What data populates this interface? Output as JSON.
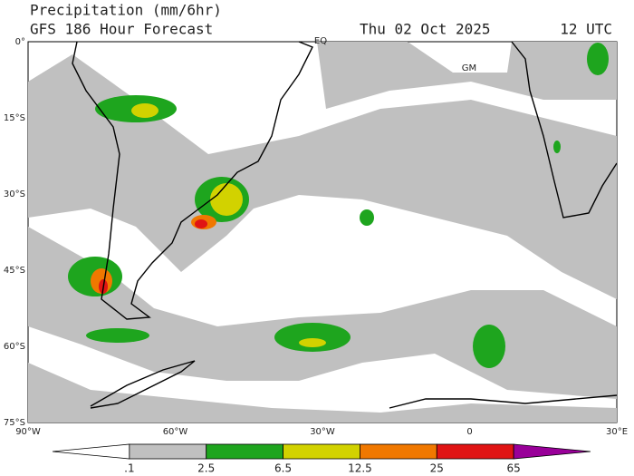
{
  "header": {
    "title": "Precipitation (mm/6hr)",
    "model": "GFS 186 Hour Forecast",
    "date": "Thu 02 Oct 2025",
    "time": "12 UTC"
  },
  "map": {
    "lat_labels": [
      "0°",
      "15°S",
      "30°S",
      "45°S",
      "60°S",
      "75°S"
    ],
    "lon_labels": [
      "90°W",
      "60°W",
      "30°W",
      "0",
      "30°E"
    ],
    "annotations": [
      "EQ",
      "GM"
    ]
  },
  "colorbar": {
    "levels": [
      {
        "value": 0.1,
        "label": ".1"
      },
      2.5,
      6.5,
      12.5,
      25,
      65
    ],
    "colors": [
      "#ffffff",
      "#c0c0c0",
      "#1ea51e",
      "#d2d200",
      "#f07800",
      "#e01414",
      "#990099"
    ]
  }
}
